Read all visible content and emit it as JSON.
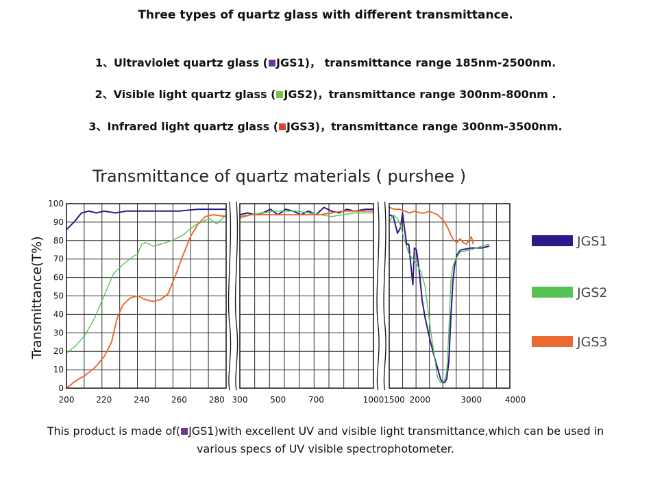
{
  "intro": {
    "title": "Three types of quartz glass with different transmittance.",
    "lines": [
      {
        "prefix": "1、Ultraviolet quartz glass (",
        "swatch_color": "#6a3a96",
        "code": "JGS1",
        "suffix": ")， transmittance range 185nm-2500nm."
      },
      {
        "prefix": "2、Visible light quartz glass (",
        "swatch_color": "#7cc242",
        "code": "JGS2",
        "suffix": ")，transmittance range 300nm-800nm ."
      },
      {
        "prefix": "3、Infrared light quartz glass (",
        "swatch_color": "#d9482b",
        "code": "JGS3",
        "suffix": ")，transmittance range 300nm-3500nm."
      }
    ]
  },
  "chart_data": {
    "type": "line",
    "title": "Transmittance of quartz materials ( purshee )",
    "ylabel": "Transmittance(T%)",
    "xlabel": "",
    "ylim": [
      0,
      100
    ],
    "yticks": [
      0,
      10,
      20,
      30,
      40,
      50,
      60,
      70,
      80,
      90,
      100
    ],
    "grid": true,
    "legend_position": "right",
    "panels": [
      {
        "xlim": [
          200,
          285
        ],
        "xticks": [
          200,
          220,
          240,
          260,
          280
        ],
        "series": [
          {
            "name": "JGS1",
            "color": "#2b1a8a",
            "points": [
              [
                200,
                86
              ],
              [
                204,
                90
              ],
              [
                208,
                95
              ],
              [
                212,
                96
              ],
              [
                216,
                95
              ],
              [
                220,
                96
              ],
              [
                226,
                95
              ],
              [
                232,
                96
              ],
              [
                240,
                96
              ],
              [
                250,
                96
              ],
              [
                260,
                96
              ],
              [
                270,
                97
              ],
              [
                280,
                97
              ],
              [
                285,
                97
              ]
            ]
          },
          {
            "name": "JGS2",
            "color": "#56c455",
            "points": [
              [
                200,
                19
              ],
              [
                205,
                23
              ],
              [
                210,
                29
              ],
              [
                215,
                38
              ],
              [
                220,
                50
              ],
              [
                225,
                62
              ],
              [
                230,
                67
              ],
              [
                235,
                71
              ],
              [
                238,
                73
              ],
              [
                240,
                78
              ],
              [
                242,
                79
              ],
              [
                246,
                77
              ],
              [
                250,
                78
              ],
              [
                256,
                80
              ],
              [
                262,
                83
              ],
              [
                268,
                88
              ],
              [
                272,
                90
              ],
              [
                276,
                92
              ],
              [
                280,
                89
              ],
              [
                283,
                92
              ],
              [
                285,
                94
              ]
            ]
          },
          {
            "name": "JGS3",
            "color": "#ec6a32",
            "points": [
              [
                200,
                0
              ],
              [
                205,
                4
              ],
              [
                210,
                7
              ],
              [
                215,
                11
              ],
              [
                220,
                17
              ],
              [
                224,
                25
              ],
              [
                227,
                38
              ],
              [
                230,
                45
              ],
              [
                234,
                49
              ],
              [
                238,
                50
              ],
              [
                242,
                48
              ],
              [
                246,
                47
              ],
              [
                250,
                48
              ],
              [
                254,
                51
              ],
              [
                258,
                61
              ],
              [
                262,
                72
              ],
              [
                266,
                82
              ],
              [
                270,
                89
              ],
              [
                274,
                93
              ],
              [
                278,
                94
              ],
              [
                285,
                93
              ]
            ]
          }
        ]
      },
      {
        "xlim": [
          300,
          1000
        ],
        "xticks": [
          300,
          500,
          700,
          1000
        ],
        "series": [
          {
            "name": "JGS1",
            "color": "#2b1a8a",
            "points": [
              [
                300,
                94
              ],
              [
                340,
                95
              ],
              [
                380,
                94
              ],
              [
                420,
                95
              ],
              [
                460,
                97
              ],
              [
                500,
                94
              ],
              [
                540,
                97
              ],
              [
                580,
                96
              ],
              [
                620,
                94
              ],
              [
                660,
                96
              ],
              [
                700,
                94
              ],
              [
                740,
                98
              ],
              [
                780,
                96
              ],
              [
                820,
                95
              ],
              [
                860,
                97
              ],
              [
                900,
                96
              ],
              [
                960,
                97
              ],
              [
                1000,
                97
              ]
            ]
          },
          {
            "name": "JGS2",
            "color": "#56c455",
            "points": [
              [
                300,
                92
              ],
              [
                360,
                94
              ],
              [
                420,
                95
              ],
              [
                480,
                96
              ],
              [
                540,
                96
              ],
              [
                600,
                96
              ],
              [
                660,
                95
              ],
              [
                720,
                94
              ],
              [
                780,
                93
              ],
              [
                840,
                94
              ],
              [
                900,
                95
              ],
              [
                960,
                95
              ],
              [
                1000,
                95
              ]
            ]
          },
          {
            "name": "JGS3",
            "color": "#ec6a32",
            "points": [
              [
                300,
                93
              ],
              [
                360,
                94
              ],
              [
                420,
                94
              ],
              [
                480,
                94
              ],
              [
                540,
                94
              ],
              [
                600,
                94
              ],
              [
                660,
                94
              ],
              [
                720,
                94
              ],
              [
                780,
                95
              ],
              [
                840,
                96
              ],
              [
                900,
                96
              ],
              [
                960,
                96
              ],
              [
                1000,
                96
              ]
            ]
          }
        ]
      },
      {
        "xlim": [
          1400,
          3750
        ],
        "xticks": [
          1500,
          2000,
          3000,
          4000
        ],
        "series": [
          {
            "name": "JGS1",
            "color": "#2b1a8a",
            "points": [
              [
                1400,
                94
              ],
              [
                1480,
                93
              ],
              [
                1560,
                84
              ],
              [
                1620,
                87
              ],
              [
                1660,
                95
              ],
              [
                1700,
                86
              ],
              [
                1740,
                78
              ],
              [
                1780,
                78
              ],
              [
                1820,
                67
              ],
              [
                1860,
                56
              ],
              [
                1890,
                76
              ],
              [
                1930,
                75
              ],
              [
                1980,
                65
              ],
              [
                2040,
                48
              ],
              [
                2100,
                38
              ],
              [
                2180,
                28
              ],
              [
                2260,
                19
              ],
              [
                2340,
                11
              ],
              [
                2400,
                5
              ],
              [
                2440,
                3
              ],
              [
                2480,
                3
              ],
              [
                2520,
                5
              ],
              [
                2560,
                14
              ],
              [
                2600,
                38
              ],
              [
                2640,
                58
              ],
              [
                2680,
                68
              ],
              [
                2720,
                72
              ],
              [
                2760,
                74
              ],
              [
                2800,
                75
              ],
              [
                3000,
                76
              ],
              [
                3200,
                76
              ],
              [
                3350,
                77
              ]
            ]
          },
          {
            "name": "JGS2",
            "color": "#56c455",
            "points": [
              [
                1400,
                90
              ],
              [
                1480,
                94
              ],
              [
                1560,
                92
              ],
              [
                1620,
                88
              ],
              [
                1700,
                80
              ],
              [
                1780,
                73
              ],
              [
                1860,
                70
              ],
              [
                1940,
                67
              ],
              [
                2020,
                63
              ],
              [
                2100,
                55
              ],
              [
                2180,
                37
              ],
              [
                2260,
                21
              ],
              [
                2340,
                6
              ],
              [
                2400,
                3
              ],
              [
                2440,
                3
              ],
              [
                2480,
                4
              ],
              [
                2520,
                9
              ],
              [
                2560,
                30
              ],
              [
                2600,
                58
              ],
              [
                2640,
                66
              ],
              [
                2680,
                69
              ],
              [
                2720,
                71
              ],
              [
                2760,
                73
              ],
              [
                2800,
                74
              ],
              [
                3000,
                75
              ],
              [
                3200,
                77
              ],
              [
                3350,
                78
              ]
            ]
          },
          {
            "name": "JGS3",
            "color": "#ec6a32",
            "points": [
              [
                1400,
                98
              ],
              [
                1500,
                97
              ],
              [
                1600,
                97
              ],
              [
                1700,
                96
              ],
              [
                1800,
                95
              ],
              [
                1900,
                96
              ],
              [
                2000,
                95
              ],
              [
                2100,
                95
              ],
              [
                2180,
                96
              ],
              [
                2260,
                95
              ],
              [
                2340,
                94
              ],
              [
                2420,
                92
              ],
              [
                2480,
                90
              ],
              [
                2540,
                87
              ],
              [
                2600,
                83
              ],
              [
                2660,
                80
              ],
              [
                2720,
                79
              ],
              [
                2780,
                81
              ],
              [
                2840,
                79
              ],
              [
                2900,
                78
              ],
              [
                2950,
                80
              ],
              [
                3000,
                82
              ],
              [
                3040,
                78
              ]
            ]
          }
        ]
      }
    ],
    "legend": [
      {
        "name": "JGS1",
        "color": "#2b1a8a"
      },
      {
        "name": "JGS2",
        "color": "#56c455"
      },
      {
        "name": "JGS3",
        "color": "#ec6a32"
      }
    ]
  },
  "footer": {
    "line1_prefix": "This product is made of(",
    "swatch_color": "#6a3a96",
    "line1_code": "JGS1",
    "line1_suffix": ")with excellent UV and visible light transmittance,which can be used in",
    "line2": "various specs of UV visible spectrophotometer."
  }
}
